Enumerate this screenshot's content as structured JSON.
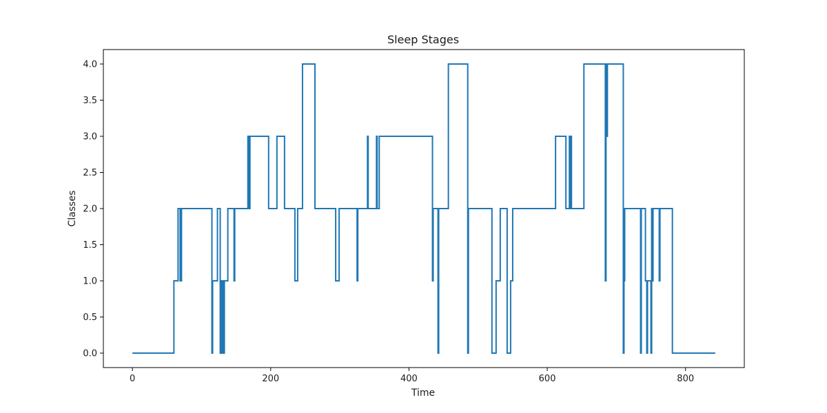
{
  "chart_data": {
    "type": "line",
    "title": "Sleep Stages",
    "xlabel": "Time",
    "ylabel": "Classes",
    "xlim": [
      -42,
      885
    ],
    "ylim": [
      -0.2,
      4.2
    ],
    "xticks": [
      0,
      200,
      400,
      600,
      800
    ],
    "xtick_labels": [
      "0",
      "200",
      "400",
      "600",
      "800"
    ],
    "yticks": [
      0.0,
      0.5,
      1.0,
      1.5,
      2.0,
      2.5,
      3.0,
      3.5,
      4.0
    ],
    "ytick_labels": [
      "0.0",
      "0.5",
      "1.0",
      "1.5",
      "2.0",
      "2.5",
      "3.0",
      "3.5",
      "4.0"
    ],
    "grid": false,
    "line_style": "step",
    "series": [
      {
        "color": "#1f77b4",
        "points": [
          [
            0,
            0
          ],
          [
            60,
            0
          ],
          [
            60,
            1
          ],
          [
            66,
            1
          ],
          [
            66,
            2
          ],
          [
            69,
            2
          ],
          [
            69,
            1
          ],
          [
            71,
            1
          ],
          [
            71,
            2
          ],
          [
            115,
            2
          ],
          [
            115,
            0
          ],
          [
            116,
            0
          ],
          [
            116,
            1
          ],
          [
            123,
            1
          ],
          [
            123,
            2
          ],
          [
            127,
            2
          ],
          [
            127,
            0
          ],
          [
            129,
            0
          ],
          [
            129,
            1
          ],
          [
            131,
            1
          ],
          [
            131,
            0
          ],
          [
            133,
            0
          ],
          [
            133,
            1
          ],
          [
            138,
            1
          ],
          [
            138,
            2
          ],
          [
            147,
            2
          ],
          [
            147,
            1
          ],
          [
            148,
            1
          ],
          [
            148,
            2
          ],
          [
            167,
            2
          ],
          [
            167,
            3
          ],
          [
            168,
            3
          ],
          [
            168,
            2
          ],
          [
            170,
            2
          ],
          [
            170,
            3
          ],
          [
            197,
            3
          ],
          [
            197,
            2
          ],
          [
            209,
            2
          ],
          [
            209,
            3
          ],
          [
            220,
            3
          ],
          [
            220,
            2
          ],
          [
            235,
            2
          ],
          [
            235,
            1
          ],
          [
            239,
            1
          ],
          [
            239,
            2
          ],
          [
            246,
            2
          ],
          [
            246,
            4
          ],
          [
            264,
            4
          ],
          [
            264,
            2
          ],
          [
            294,
            2
          ],
          [
            294,
            1
          ],
          [
            299,
            1
          ],
          [
            299,
            2
          ],
          [
            325,
            2
          ],
          [
            325,
            1
          ],
          [
            326,
            1
          ],
          [
            326,
            2
          ],
          [
            340,
            2
          ],
          [
            340,
            3
          ],
          [
            341,
            3
          ],
          [
            341,
            2
          ],
          [
            353,
            2
          ],
          [
            353,
            3
          ],
          [
            354,
            3
          ],
          [
            354,
            2
          ],
          [
            357,
            2
          ],
          [
            357,
            3
          ],
          [
            434,
            3
          ],
          [
            434,
            1
          ],
          [
            435,
            1
          ],
          [
            435,
            2
          ],
          [
            442,
            2
          ],
          [
            442,
            0
          ],
          [
            443,
            0
          ],
          [
            443,
            2
          ],
          [
            457,
            2
          ],
          [
            457,
            4
          ],
          [
            485,
            4
          ],
          [
            485,
            0
          ],
          [
            486,
            0
          ],
          [
            486,
            2
          ],
          [
            520,
            2
          ],
          [
            520,
            0
          ],
          [
            526,
            0
          ],
          [
            526,
            1
          ],
          [
            532,
            1
          ],
          [
            532,
            2
          ],
          [
            542,
            2
          ],
          [
            542,
            0
          ],
          [
            547,
            0
          ],
          [
            547,
            1
          ],
          [
            550,
            1
          ],
          [
            550,
            2
          ],
          [
            612,
            2
          ],
          [
            612,
            3
          ],
          [
            627,
            3
          ],
          [
            627,
            2
          ],
          [
            632,
            2
          ],
          [
            632,
            3
          ],
          [
            633,
            3
          ],
          [
            633,
            2
          ],
          [
            634,
            2
          ],
          [
            634,
            3
          ],
          [
            635,
            3
          ],
          [
            635,
            2
          ],
          [
            653,
            2
          ],
          [
            653,
            4
          ],
          [
            684,
            4
          ],
          [
            684,
            1
          ],
          [
            685,
            1
          ],
          [
            685,
            4
          ],
          [
            686,
            4
          ],
          [
            686,
            3
          ],
          [
            687,
            3
          ],
          [
            687,
            4
          ],
          [
            710,
            4
          ],
          [
            710,
            0
          ],
          [
            711,
            0
          ],
          [
            711,
            1
          ],
          [
            712,
            1
          ],
          [
            712,
            2
          ],
          [
            735,
            2
          ],
          [
            735,
            0
          ],
          [
            736,
            0
          ],
          [
            736,
            2
          ],
          [
            742,
            2
          ],
          [
            742,
            1
          ],
          [
            744,
            1
          ],
          [
            744,
            0
          ],
          [
            745,
            0
          ],
          [
            745,
            1
          ],
          [
            750,
            1
          ],
          [
            750,
            0
          ],
          [
            751,
            0
          ],
          [
            751,
            2
          ],
          [
            752,
            2
          ],
          [
            752,
            1
          ],
          [
            753,
            1
          ],
          [
            753,
            2
          ],
          [
            762,
            2
          ],
          [
            762,
            1
          ],
          [
            763,
            1
          ],
          [
            763,
            2
          ],
          [
            781,
            2
          ],
          [
            781,
            0
          ],
          [
            843,
            0
          ]
        ]
      }
    ]
  }
}
